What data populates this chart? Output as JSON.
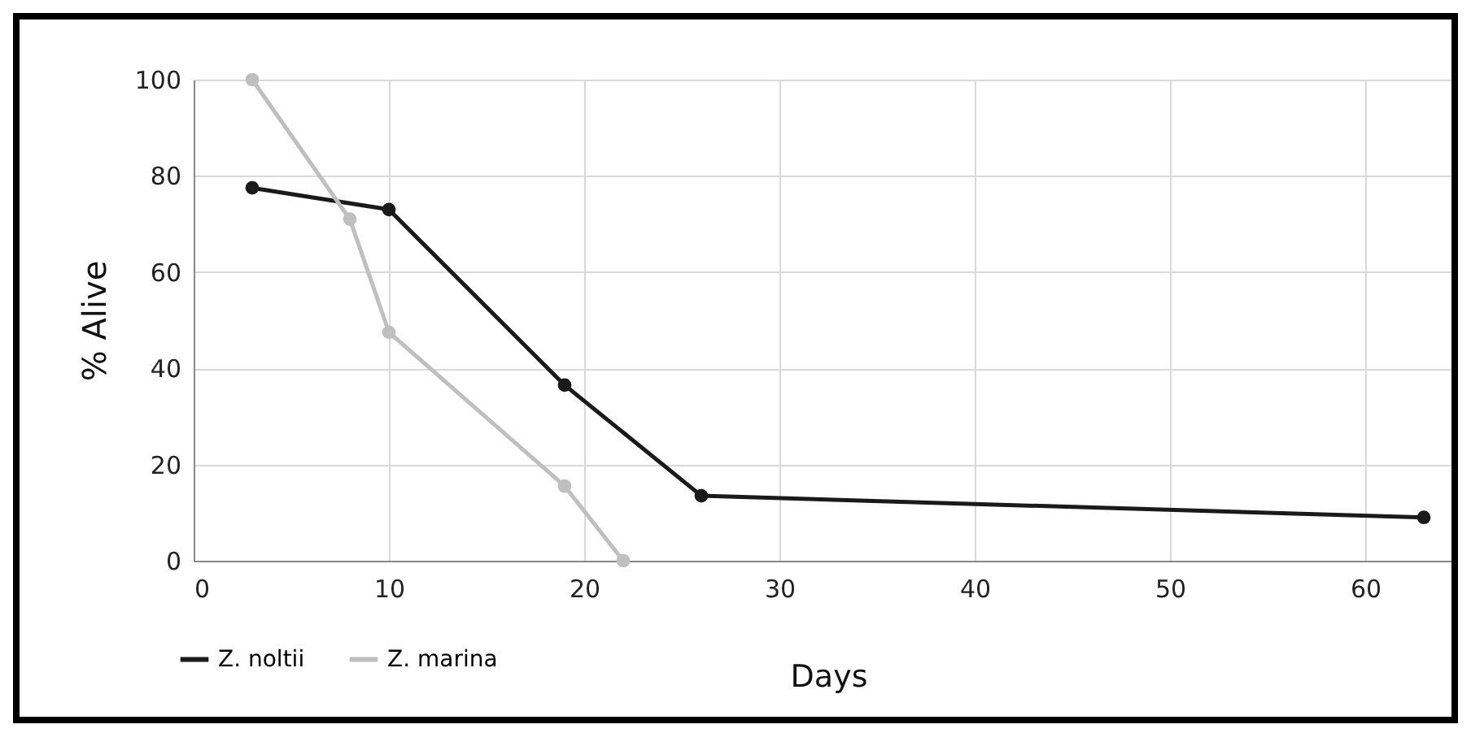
{
  "chart_data": {
    "type": "line",
    "xlabel": "Days",
    "ylabel": "% Alive",
    "xlim": [
      0,
      65
    ],
    "xticks": [
      0,
      10,
      20,
      30,
      40,
      50,
      60
    ],
    "ylim": [
      0,
      100
    ],
    "yticks": [
      0,
      20,
      40,
      60,
      80,
      100
    ],
    "grid": true,
    "legend": "bottom left",
    "marker": "circle",
    "line_style": "solid",
    "series": [
      {
        "name": "Z. noltii",
        "color": "#1a1a1a",
        "x": [
          3,
          10,
          19,
          26,
          63
        ],
        "values": [
          77.5,
          73,
          36.5,
          13.5,
          9
        ]
      },
      {
        "name": "Z. marina",
        "color": "#bfbfbf",
        "x": [
          3,
          8,
          10,
          19,
          22
        ],
        "values": [
          100,
          71,
          47.5,
          15.5,
          0
        ]
      }
    ]
  }
}
